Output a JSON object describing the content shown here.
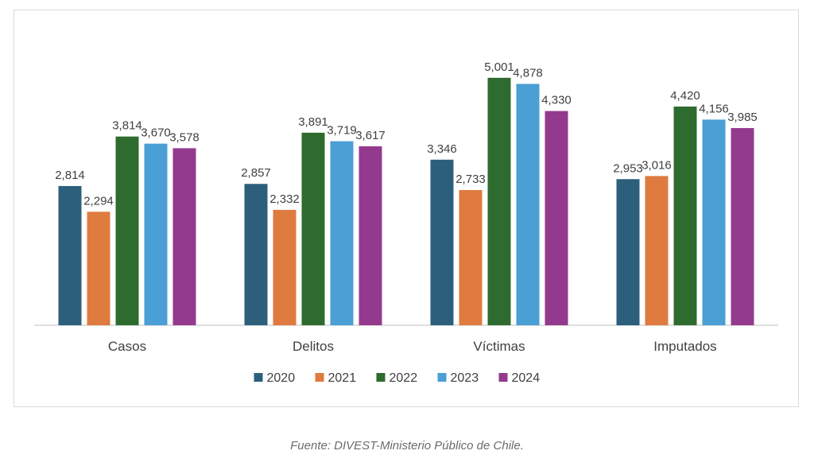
{
  "chart_data": {
    "type": "bar",
    "categories": [
      "Casos",
      "Delitos",
      "Víctimas",
      "Imputados"
    ],
    "series": [
      {
        "name": "2020",
        "color": "#2c5f7c",
        "values": [
          2814,
          2857,
          3346,
          2953
        ],
        "labels": [
          "2,814",
          "2,857",
          "3,346",
          "2,953"
        ]
      },
      {
        "name": "2021",
        "color": "#df7b3f",
        "values": [
          2294,
          2332,
          2733,
          3016
        ],
        "labels": [
          "2,294",
          "2,332",
          "2,733",
          "3,016"
        ]
      },
      {
        "name": "2022",
        "color": "#2e6b2e",
        "values": [
          3814,
          3891,
          5001,
          4420
        ],
        "labels": [
          "3,814",
          "3,891",
          "5,001",
          "4,420"
        ]
      },
      {
        "name": "2023",
        "color": "#4a9fd4",
        "values": [
          3670,
          3719,
          4878,
          4156
        ],
        "labels": [
          "3,670",
          "3,719",
          "4,878",
          "4,156"
        ]
      },
      {
        "name": "2024",
        "color": "#943a8e",
        "values": [
          3578,
          3617,
          4330,
          3985
        ],
        "labels": [
          "3,578",
          "3,617",
          "4,330",
          "3,985"
        ]
      }
    ],
    "ylim": [
      0,
      5400
    ],
    "grid": false,
    "legend_position": "bottom"
  },
  "source": "Fuente: DIVEST-Ministerio Público de Chile."
}
